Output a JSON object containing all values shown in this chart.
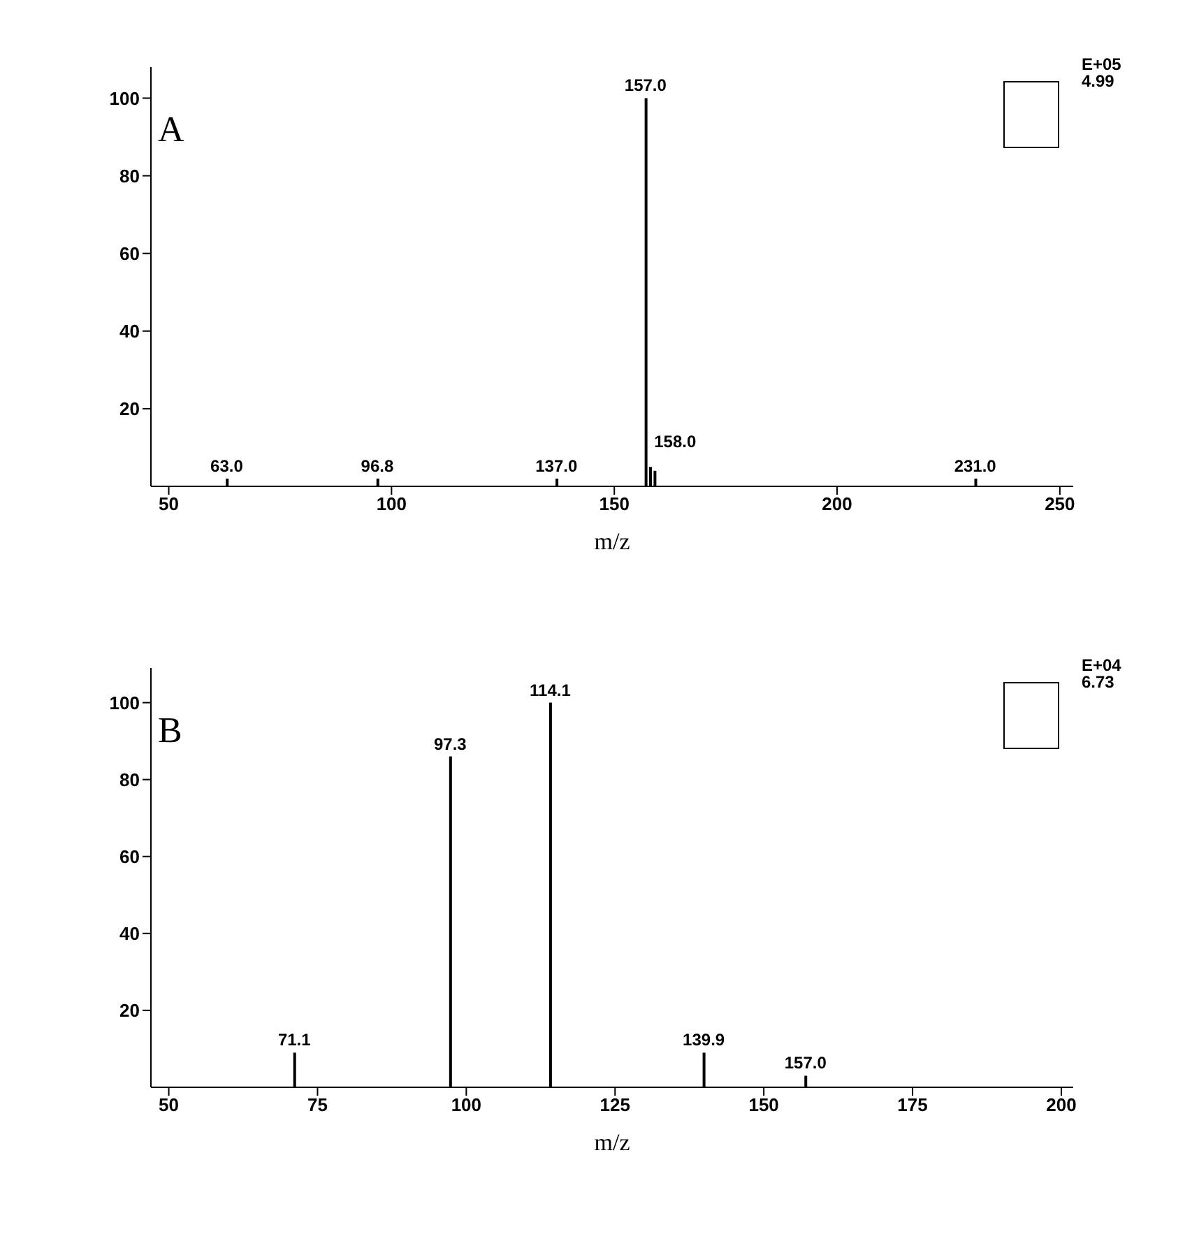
{
  "chart_data": [
    {
      "type": "bar",
      "title": "A",
      "xlabel": "m/z",
      "x": [
        63.0,
        96.8,
        137.0,
        157.0,
        158.0,
        159.0,
        231.0
      ],
      "values": [
        2,
        2,
        2,
        100,
        5,
        4,
        2
      ],
      "color": "#000000",
      "xlim": [
        46,
        253
      ],
      "xticks": [
        50,
        100,
        150,
        200,
        250
      ],
      "ylim": [
        0,
        108
      ],
      "yticks": [
        20,
        40,
        60,
        80,
        100
      ],
      "annotations": [
        "E+05",
        "4.99",
        {
          "text": "63.0",
          "x": 63.0,
          "y": 2
        },
        {
          "text": "96.8",
          "x": 96.8,
          "y": 2
        },
        {
          "text": "137.0",
          "x": 137.0,
          "y": 2
        },
        {
          "text": "157.0",
          "x": 157.0,
          "y": 100
        },
        {
          "text": "158.0",
          "x": 158.0,
          "y": 5
        },
        {
          "text": "231.0",
          "x": 231.0,
          "y": 2
        }
      ],
      "grid": false,
      "legend": false
    },
    {
      "type": "bar",
      "title": "B",
      "xlabel": "m/z",
      "x": [
        71.1,
        97.3,
        114.1,
        139.9,
        157.0
      ],
      "values": [
        9,
        86,
        100,
        9,
        3
      ],
      "color": "#000000",
      "xlim": [
        47,
        202
      ],
      "xticks": [
        50,
        75,
        100,
        125,
        150,
        175,
        200
      ],
      "ylim": [
        0,
        109
      ],
      "yticks": [
        20,
        40,
        60,
        80,
        100
      ],
      "annotations": [
        "E+04",
        "6.73",
        {
          "text": "71.1",
          "x": 71.1,
          "y": 9
        },
        {
          "text": "97.3",
          "x": 97.3,
          "y": 86
        },
        {
          "text": "114.1",
          "x": 114.1,
          "y": 100
        },
        {
          "text": "139.9",
          "x": 139.9,
          "y": 9
        },
        {
          "text": "157.0",
          "x": 157.0,
          "y": 3
        }
      ],
      "grid": false,
      "legend": false
    }
  ]
}
